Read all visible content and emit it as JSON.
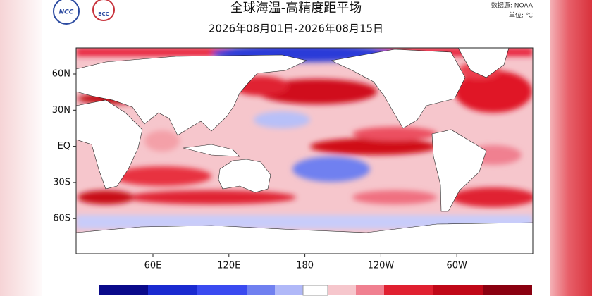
{
  "header": {
    "logos": [
      "NCC",
      "BCC"
    ],
    "title": "全球海温-高精度距平场",
    "subtitle": "2026年08月01日-2026年08月15日",
    "source": "数据源: NOAA",
    "unit": "单位: ℃"
  },
  "map": {
    "lat_labels": [
      "60N",
      "30N",
      "EQ",
      "30S",
      "60S"
    ],
    "lon_labels": [
      "60E",
      "120E",
      "180",
      "120W",
      "60W"
    ]
  }
}
